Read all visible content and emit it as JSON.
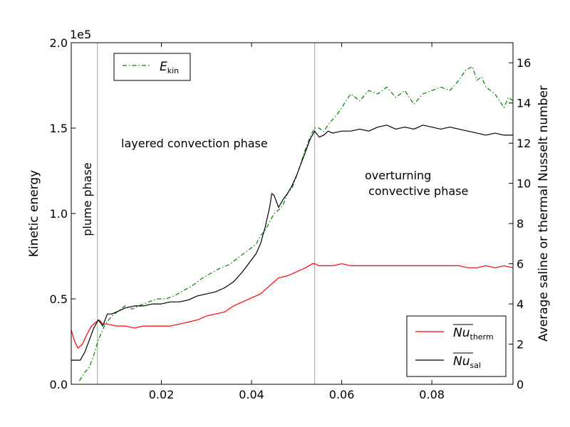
{
  "chart_data": {
    "type": "line",
    "x_range": [
      0.0,
      0.098
    ],
    "x_ticks": [
      0.02,
      0.04,
      0.06,
      0.08
    ],
    "x_tick_labels": [
      "0.02",
      "0.04",
      "0.06",
      "0.08"
    ],
    "left_axis": {
      "label": "Kinetic energy",
      "multiplier": "1e5",
      "range": [
        0.0,
        2.0
      ],
      "ticks": [
        0.0,
        0.5,
        1.0,
        1.5,
        2.0
      ],
      "tick_labels": [
        "0.0",
        "0.5",
        "1.0",
        "1.5",
        "2.0"
      ]
    },
    "right_axis": {
      "label": "Average saline or thermal Nusselt number",
      "range": [
        0,
        17
      ],
      "ticks": [
        0,
        2,
        4,
        6,
        8,
        10,
        12,
        14,
        16
      ],
      "tick_labels": [
        "0",
        "2",
        "4",
        "6",
        "8",
        "10",
        "12",
        "14",
        "16"
      ]
    },
    "phase_lines": [
      0.0058,
      0.054
    ],
    "annotations": {
      "plume": "plume phase",
      "layered": "layered convection phase",
      "overturning_1": "overturning",
      "overturning_2": " convective phase"
    },
    "legend_top": {
      "symbol": "E",
      "subscript": "kin"
    },
    "legend_bottom": [
      {
        "symbol": "Nu",
        "subscript": "therm"
      },
      {
        "symbol": "Nu",
        "subscript": "sal"
      }
    ],
    "colors": {
      "ekin": "#008000",
      "nu_therm": "#ff0000",
      "nu_sal": "#000000",
      "phase_line": "#b0b0b0"
    },
    "series": [
      {
        "name": "E_kin",
        "axis": "left",
        "x": [
          0.0018,
          0.003,
          0.004,
          0.005,
          0.006,
          0.0075,
          0.009,
          0.0105,
          0.012,
          0.0135,
          0.015,
          0.017,
          0.019,
          0.021,
          0.023,
          0.025,
          0.027,
          0.029,
          0.031,
          0.033,
          0.035,
          0.037,
          0.039,
          0.04,
          0.041,
          0.042,
          0.043,
          0.044,
          0.045,
          0.046,
          0.047,
          0.048,
          0.049,
          0.05,
          0.051,
          0.052,
          0.053,
          0.054,
          0.055,
          0.056,
          0.057,
          0.058,
          0.059,
          0.06,
          0.062,
          0.064,
          0.066,
          0.068,
          0.07,
          0.072,
          0.074,
          0.076,
          0.078,
          0.08,
          0.082,
          0.084,
          0.086,
          0.0875,
          0.089,
          0.09,
          0.091,
          0.092,
          0.093,
          0.094,
          0.095,
          0.096,
          0.097,
          0.098
        ],
        "y": [
          0.02,
          0.07,
          0.1,
          0.17,
          0.26,
          0.35,
          0.4,
          0.43,
          0.46,
          0.44,
          0.46,
          0.48,
          0.5,
          0.5,
          0.52,
          0.55,
          0.58,
          0.62,
          0.65,
          0.68,
          0.7,
          0.74,
          0.78,
          0.8,
          0.82,
          0.87,
          0.9,
          0.95,
          1.0,
          1.02,
          1.05,
          1.12,
          1.15,
          1.22,
          1.3,
          1.38,
          1.45,
          1.5,
          1.5,
          1.48,
          1.52,
          1.55,
          1.58,
          1.62,
          1.7,
          1.66,
          1.72,
          1.7,
          1.74,
          1.68,
          1.72,
          1.64,
          1.7,
          1.72,
          1.74,
          1.72,
          1.78,
          1.84,
          1.86,
          1.78,
          1.8,
          1.74,
          1.72,
          1.7,
          1.66,
          1.62,
          1.68,
          1.66
        ]
      },
      {
        "name": "Nu_therm",
        "axis": "right",
        "x": [
          0.0,
          0.0008,
          0.0015,
          0.0025,
          0.0035,
          0.0045,
          0.0055,
          0.0062,
          0.007,
          0.008,
          0.01,
          0.012,
          0.014,
          0.016,
          0.018,
          0.02,
          0.022,
          0.024,
          0.026,
          0.028,
          0.03,
          0.032,
          0.034,
          0.036,
          0.038,
          0.04,
          0.042,
          0.044,
          0.046,
          0.048,
          0.05,
          0.052,
          0.0535,
          0.054,
          0.055,
          0.056,
          0.058,
          0.06,
          0.062,
          0.064,
          0.066,
          0.068,
          0.07,
          0.072,
          0.074,
          0.076,
          0.078,
          0.08,
          0.082,
          0.084,
          0.086,
          0.088,
          0.09,
          0.092,
          0.094,
          0.096,
          0.098
        ],
        "y": [
          2.7,
          2.1,
          1.8,
          2.0,
          2.5,
          2.9,
          3.1,
          3.2,
          3.0,
          3.0,
          2.9,
          2.9,
          2.8,
          2.9,
          2.9,
          2.9,
          2.9,
          3.0,
          3.1,
          3.2,
          3.4,
          3.5,
          3.6,
          3.9,
          4.1,
          4.3,
          4.5,
          4.9,
          5.3,
          5.4,
          5.6,
          5.8,
          6.0,
          6.0,
          5.9,
          5.9,
          5.9,
          6.0,
          5.9,
          5.9,
          5.9,
          5.9,
          5.9,
          5.9,
          5.9,
          5.9,
          5.9,
          5.9,
          5.9,
          5.9,
          5.9,
          5.8,
          5.8,
          5.9,
          5.8,
          5.9,
          5.8
        ]
      },
      {
        "name": "Nu_sal",
        "axis": "right",
        "x": [
          0.0,
          0.001,
          0.002,
          0.003,
          0.004,
          0.005,
          0.006,
          0.007,
          0.008,
          0.009,
          0.01,
          0.012,
          0.014,
          0.016,
          0.018,
          0.02,
          0.022,
          0.024,
          0.026,
          0.028,
          0.03,
          0.032,
          0.034,
          0.036,
          0.038,
          0.04,
          0.041,
          0.042,
          0.043,
          0.044,
          0.0445,
          0.045,
          0.046,
          0.047,
          0.048,
          0.049,
          0.05,
          0.051,
          0.052,
          0.053,
          0.054,
          0.055,
          0.056,
          0.057,
          0.058,
          0.06,
          0.062,
          0.064,
          0.066,
          0.068,
          0.07,
          0.072,
          0.074,
          0.076,
          0.078,
          0.08,
          0.082,
          0.084,
          0.086,
          0.088,
          0.09,
          0.092,
          0.094,
          0.096,
          0.098
        ],
        "y": [
          1.2,
          1.2,
          1.2,
          1.6,
          2.2,
          2.8,
          3.2,
          2.9,
          3.5,
          3.5,
          3.6,
          3.8,
          3.9,
          3.9,
          4.0,
          4.0,
          4.1,
          4.1,
          4.2,
          4.4,
          4.5,
          4.6,
          4.8,
          5.1,
          5.6,
          6.2,
          6.5,
          7.0,
          7.8,
          8.8,
          9.5,
          9.4,
          8.8,
          9.2,
          9.5,
          9.9,
          10.4,
          11.0,
          11.6,
          12.2,
          12.6,
          12.3,
          12.4,
          12.6,
          12.5,
          12.6,
          12.6,
          12.7,
          12.6,
          12.8,
          12.9,
          12.7,
          12.8,
          12.7,
          12.9,
          12.8,
          12.7,
          12.8,
          12.7,
          12.6,
          12.5,
          12.4,
          12.5,
          12.4,
          12.4
        ]
      }
    ]
  }
}
